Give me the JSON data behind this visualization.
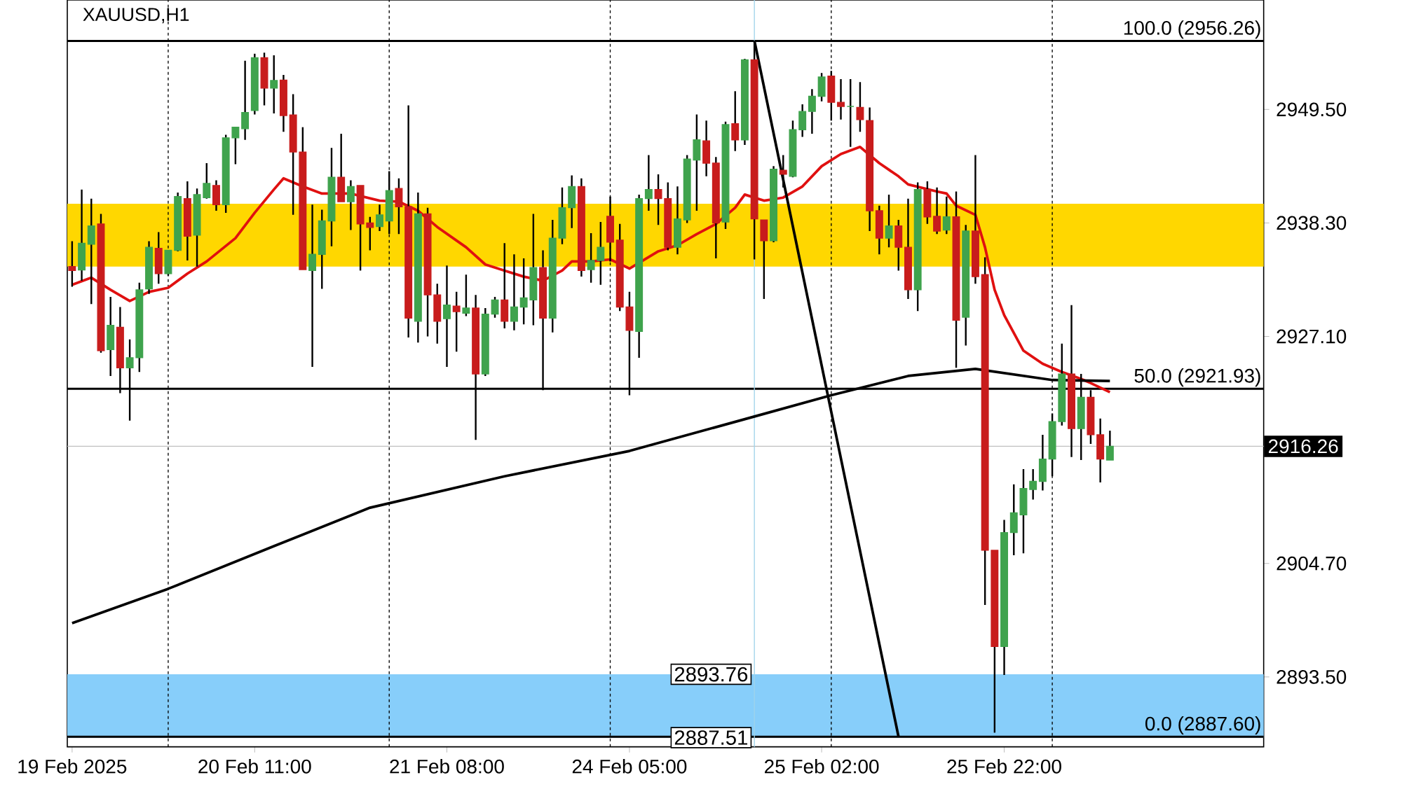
{
  "chart_data": {
    "type": "candlestick",
    "title": "XAUUSD,H1",
    "categories": [
      "19 Feb 2025",
      null,
      null,
      null,
      null,
      null,
      null,
      null,
      null,
      null,
      null,
      null,
      null,
      null,
      null,
      null,
      null,
      null,
      null,
      "20 Feb 11:00",
      null,
      null,
      null,
      null,
      null,
      null,
      null,
      null,
      null,
      null,
      null,
      null,
      null,
      null,
      null,
      null,
      null,
      null,
      null,
      "21 Feb 08:00",
      null,
      null,
      null,
      null,
      null,
      null,
      null,
      null,
      null,
      null,
      null,
      null,
      null,
      null,
      null,
      null,
      null,
      null,
      "24 Feb 05:00",
      null,
      null,
      null,
      null,
      null,
      null,
      null,
      null,
      null,
      null,
      null,
      null,
      null,
      null,
      null,
      null,
      null,
      null,
      null,
      "25 Feb 02:00",
      null,
      null,
      null,
      null,
      null,
      null,
      null,
      null,
      null,
      null,
      null,
      null,
      null,
      null,
      null,
      null,
      null,
      null,
      "25 Feb 22:00",
      null,
      null,
      null,
      null,
      null,
      null,
      null,
      null,
      null,
      null,
      null
    ],
    "ohlc": [
      [
        2934.0,
        2936.5,
        2932.0,
        2933.6
      ],
      [
        2933.65,
        2941.6,
        2932.6,
        2936.3
      ],
      [
        2936.2,
        2940.7,
        2930.3,
        2938.0
      ],
      [
        2938.2,
        2939.2,
        2925.5,
        2925.7
      ],
      [
        2925.8,
        2931.0,
        2923.2,
        2928.2
      ],
      [
        2928.0,
        2930.0,
        2921.5,
        2924.0
      ],
      [
        2924.0,
        2926.8,
        2918.8,
        2925.0
      ],
      [
        2925.0,
        2932.4,
        2923.6,
        2931.7
      ],
      [
        2931.8,
        2936.5,
        2931.3,
        2935.9
      ],
      [
        2935.8,
        2937.4,
        2932.3,
        2933.3
      ],
      [
        2933.3,
        2935.6,
        2933.1,
        2935.6
      ],
      [
        2935.6,
        2941.3,
        2935.5,
        2940.9
      ],
      [
        2940.7,
        2942.4,
        2934.6,
        2937.0
      ],
      [
        2937.1,
        2941.7,
        2934.0,
        2941.1
      ],
      [
        2940.8,
        2944.2,
        2940.7,
        2942.2
      ],
      [
        2942.0,
        2942.5,
        2939.5,
        2940.1
      ],
      [
        2940.1,
        2947.0,
        2939.3,
        2946.7
      ],
      [
        2946.7,
        2947.8,
        2944.1,
        2947.75
      ],
      [
        2947.6,
        2954.3,
        2946.5,
        2949.2
      ],
      [
        2949.4,
        2955.0,
        2949.0,
        2954.6
      ],
      [
        2954.6,
        2955.1,
        2949.9,
        2951.6
      ],
      [
        2951.6,
        2954.85,
        2949.1,
        2952.36
      ],
      [
        2952.4,
        2952.9,
        2947.3,
        2948.9
      ],
      [
        2948.95,
        2951.0,
        2939.1,
        2945.3
      ],
      [
        2945.3,
        2947.75,
        2933.7,
        2933.7
      ],
      [
        2933.6,
        2940.1,
        2924.1,
        2935.2
      ],
      [
        2935.2,
        2939.6,
        2931.8,
        2938.5
      ],
      [
        2938.5,
        2945.7,
        2936.0,
        2942.8
      ],
      [
        2942.8,
        2947.1,
        2940.4,
        2940.4
      ],
      [
        2940.4,
        2942.5,
        2937.6,
        2941.9
      ],
      [
        2942.0,
        2942.0,
        2933.6,
        2938.2
      ],
      [
        2938.3,
        2938.9,
        2935.6,
        2937.85
      ],
      [
        2937.95,
        2940.1,
        2937.5,
        2939.1
      ],
      [
        2938.5,
        2943.4,
        2937.2,
        2941.5
      ],
      [
        2941.7,
        2942.7,
        2937.2,
        2939.9
      ],
      [
        2939.9,
        2949.9,
        2927.0,
        2928.9
      ],
      [
        2928.6,
        2941.3,
        2926.5,
        2939.2
      ],
      [
        2939.2,
        2939.8,
        2927.1,
        2931.2
      ],
      [
        2931.2,
        2932.3,
        2926.4,
        2928.6
      ],
      [
        2928.85,
        2934.1,
        2924.1,
        2930.2
      ],
      [
        2930.1,
        2931.5,
        2925.6,
        2929.55
      ],
      [
        2929.4,
        2933.2,
        2929.1,
        2929.9
      ],
      [
        2929.9,
        2931.2,
        2916.9,
        2923.4
      ],
      [
        2923.4,
        2929.9,
        2923.2,
        2929.3
      ],
      [
        2929.3,
        2931.0,
        2928.95,
        2930.7
      ],
      [
        2930.7,
        2936.3,
        2927.9,
        2928.6
      ],
      [
        2928.6,
        2935.2,
        2927.7,
        2930.0
      ],
      [
        2930.0,
        2934.8,
        2928.3,
        2930.9
      ],
      [
        2930.7,
        2939.2,
        2928.2,
        2933.9
      ],
      [
        2933.9,
        2935.6,
        2921.8,
        2928.9
      ],
      [
        2928.9,
        2938.6,
        2927.5,
        2936.8
      ],
      [
        2936.8,
        2941.8,
        2936.2,
        2939.8
      ],
      [
        2939.8,
        2943.0,
        2937.8,
        2941.9
      ],
      [
        2941.9,
        2942.7,
        2933.0,
        2933.6
      ],
      [
        2933.7,
        2937.3,
        2932.4,
        2934.6
      ],
      [
        2934.6,
        2938.4,
        2932.2,
        2935.9
      ],
      [
        2938.95,
        2940.9,
        2934.5,
        2936.4
      ],
      [
        2936.6,
        2938.2,
        2929.6,
        2930.0
      ],
      [
        2930.0,
        2931.5,
        2921.3,
        2927.7
      ],
      [
        2927.6,
        2941.1,
        2925.0,
        2940.7
      ],
      [
        2940.7,
        2945.0,
        2939.5,
        2941.6
      ],
      [
        2941.6,
        2943.1,
        2938.1,
        2940.7
      ],
      [
        2940.7,
        2942.3,
        2935.6,
        2935.9
      ],
      [
        2935.9,
        2941.9,
        2935.2,
        2938.7
      ],
      [
        2938.6,
        2945.0,
        2938.3,
        2944.6
      ],
      [
        2944.5,
        2949.0,
        2939.5,
        2946.5
      ],
      [
        2946.4,
        2948.4,
        2942.9,
        2944.2
      ],
      [
        2944.2,
        2944.8,
        2934.8,
        2938.3
      ],
      [
        2938.4,
        2948.3,
        2937.7,
        2948.0
      ],
      [
        2948.1,
        2951.3,
        2945.4,
        2946.5
      ],
      [
        2946.5,
        2954.5,
        2946.0,
        2954.4
      ],
      [
        2954.4,
        2956.26,
        2934.7,
        2938.7
      ],
      [
        2938.6,
        2938.6,
        2930.8,
        2936.55
      ],
      [
        2936.55,
        2943.9,
        2936.4,
        2943.6
      ],
      [
        2943.5,
        2945.0,
        2941.8,
        2943.1
      ],
      [
        2942.9,
        2948.4,
        2942.8,
        2947.5
      ],
      [
        2947.5,
        2950.0,
        2946.8,
        2949.3
      ],
      [
        2949.3,
        2951.5,
        2947.1,
        2950.8
      ],
      [
        2950.8,
        2953.1,
        2950.3,
        2952.7
      ],
      [
        2952.8,
        2953.3,
        2948.4,
        2950.2
      ],
      [
        2950.2,
        2952.5,
        2948.5,
        2949.8
      ],
      [
        2949.8,
        2952.5,
        2945.8,
        2949.8
      ],
      [
        2949.7,
        2952.2,
        2947.3,
        2948.5
      ],
      [
        2948.4,
        2949.7,
        2937.5,
        2939.5
      ],
      [
        2939.5,
        2940.0,
        2935.2,
        2936.8
      ],
      [
        2936.8,
        2941.1,
        2935.9,
        2938.0
      ],
      [
        2938.0,
        2938.6,
        2933.6,
        2935.9
      ],
      [
        2935.9,
        2940.7,
        2930.8,
        2931.7
      ],
      [
        2931.7,
        2942.3,
        2929.6,
        2941.6
      ],
      [
        2941.6,
        2942.4,
        2938.2,
        2938.9
      ],
      [
        2938.95,
        2941.8,
        2937.2,
        2937.5
      ],
      [
        2937.6,
        2940.9,
        2937.2,
        2938.9
      ],
      [
        2938.9,
        2941.4,
        2924.0,
        2928.7
      ],
      [
        2929.0,
        2938.1,
        2926.2,
        2937.5
      ],
      [
        2937.5,
        2945.0,
        2932.3,
        2933.0
      ],
      [
        2933.2,
        2934.9,
        2900.6,
        2906.0
      ],
      [
        2906.0,
        2906.0,
        2888.0,
        2896.5
      ],
      [
        2896.5,
        2909.0,
        2893.7,
        2907.75
      ],
      [
        2907.75,
        2912.5,
        2905.5,
        2909.7
      ],
      [
        2909.5,
        2914.0,
        2905.7,
        2912.1
      ],
      [
        2912.0,
        2914.0,
        2911.0,
        2912.8
      ],
      [
        2912.8,
        2917.4,
        2911.9,
        2915.0
      ],
      [
        2915.0,
        2919.5,
        2913.3,
        2918.7
      ],
      [
        2918.7,
        2926.4,
        2918.3,
        2923.4
      ],
      [
        2923.4,
        2930.2,
        2915.2,
        2918.0
      ],
      [
        2918.0,
        2923.4,
        2914.9,
        2921.1
      ],
      [
        2921.1,
        2921.8,
        2916.5,
        2917.4
      ],
      [
        2917.4,
        2919.0,
        2912.7,
        2915.0
      ],
      [
        2914.9,
        2917.8,
        2914.9,
        2916.26
      ]
    ],
    "colors": [
      "#c81c1c",
      "#3fa34d",
      "#3fa34d",
      "#c81c1c",
      "#3fa34d",
      "#c81c1c",
      "#3fa34d",
      "#3fa34d",
      "#3fa34d",
      "#c81c1c",
      "#3fa34d",
      "#3fa34d",
      "#c81c1c",
      "#3fa34d",
      "#3fa34d",
      "#c81c1c",
      "#3fa34d",
      "#3fa34d",
      "#3fa34d",
      "#3fa34d",
      "#c81c1c",
      "#3fa34d",
      "#c81c1c",
      "#c81c1c",
      "#c81c1c",
      "#3fa34d",
      "#3fa34d",
      "#3fa34d",
      "#c81c1c",
      "#3fa34d",
      "#c81c1c",
      "#c81c1c",
      "#3fa34d",
      "#3fa34d",
      "#c81c1c",
      "#c81c1c",
      "#3fa34d",
      "#c81c1c",
      "#c81c1c",
      "#3fa34d",
      "#c81c1c",
      "#3fa34d",
      "#c81c1c",
      "#3fa34d",
      "#3fa34d",
      "#c81c1c",
      "#3fa34d",
      "#3fa34d",
      "#3fa34d",
      "#c81c1c",
      "#3fa34d",
      "#3fa34d",
      "#3fa34d",
      "#c81c1c",
      "#3fa34d",
      "#3fa34d",
      "#c81c1c",
      "#c81c1c",
      "#c81c1c",
      "#3fa34d",
      "#3fa34d",
      "#c81c1c",
      "#c81c1c",
      "#3fa34d",
      "#3fa34d",
      "#3fa34d",
      "#c81c1c",
      "#c81c1c",
      "#3fa34d",
      "#c81c1c",
      "#3fa34d",
      "#c81c1c",
      "#c81c1c",
      "#3fa34d",
      "#c81c1c",
      "#3fa34d",
      "#3fa34d",
      "#3fa34d",
      "#3fa34d",
      "#c81c1c",
      "#c81c1c",
      "#3fa34d",
      "#c81c1c",
      "#c81c1c",
      "#c81c1c",
      "#3fa34d",
      "#c81c1c",
      "#c81c1c",
      "#3fa34d",
      "#c81c1c",
      "#c81c1c",
      "#3fa34d",
      "#c81c1c",
      "#3fa34d",
      "#c81c1c",
      "#c81c1c",
      "#c81c1c",
      "#3fa34d",
      "#3fa34d",
      "#3fa34d",
      "#3fa34d",
      "#3fa34d",
      "#3fa34d",
      "#3fa34d",
      "#c81c1c",
      "#3fa34d",
      "#c81c1c",
      "#c81c1c",
      "#3fa34d"
    ],
    "series": [
      {
        "type": "line",
        "color": "#e01010",
        "values": [
          2932.2,
          null,
          2932.9,
          null,
          2931.7,
          null,
          2930.6,
          null,
          2931.5,
          null,
          2931.9,
          null,
          2933.3,
          null,
          2934.5,
          null,
          null,
          2936.8,
          null,
          2939.3,
          null,
          2941.6,
          2942.7,
          null,
          2941.9,
          null,
          2941.2,
          null,
          null,
          2941.2,
          null,
          null,
          2940.5,
          null,
          2940.4,
          null,
          2939.5,
          null,
          2937.9,
          null,
          null,
          2935.9,
          null,
          2934.2,
          null,
          2933.6,
          null,
          2933.0,
          null,
          2932.6,
          null,
          2933.6,
          2934.5,
          null,
          2934.5,
          null,
          2934.7,
          null,
          2933.8,
          null,
          null,
          2935.5,
          null,
          2936.1,
          null,
          2937.2,
          null,
          2938.2,
          null,
          2939.8,
          2941.1,
          null,
          2940.5,
          null,
          2940.8,
          null,
          2941.9,
          null,
          2943.9,
          null,
          2945.1,
          null,
          2945.8,
          null,
          2944.2,
          null,
          2942.9,
          2942.1,
          null,
          null,
          2941.4,
          2941.2,
          2940.0,
          null,
          2939.1,
          2935.9,
          2931.7,
          2929.2,
          null,
          2925.7,
          null,
          2924.4,
          null,
          2923.6,
          null,
          2922.9,
          2922.5,
          null,
          2921.6
        ]
      },
      {
        "type": "line",
        "color": "#000000",
        "values": [
          2898.8,
          null,
          null,
          null,
          null,
          null,
          null,
          null,
          null,
          null,
          2902.2,
          null,
          null,
          null,
          null,
          null,
          null,
          null,
          null,
          null,
          null,
          2906.4,
          null,
          null,
          null,
          null,
          null,
          null,
          null,
          null,
          null,
          2910.2,
          null,
          null,
          null,
          null,
          null,
          null,
          null,
          null,
          null,
          null,
          null,
          null,
          null,
          2913.3,
          null,
          null,
          null,
          null,
          null,
          null,
          null,
          null,
          null,
          null,
          null,
          null,
          2915.8,
          null,
          null,
          null,
          null,
          null,
          null,
          null,
          null,
          null,
          null,
          null,
          null,
          2919.2,
          null,
          null,
          null,
          null,
          null,
          null,
          null,
          2921.3,
          null,
          null,
          null,
          null,
          null,
          null,
          null,
          2923.2,
          null,
          null,
          null,
          null,
          null,
          null,
          2923.9,
          null,
          null,
          null,
          null,
          null,
          null,
          null,
          2922.8,
          null,
          null,
          null,
          null,
          null,
          2922.7
        ]
      },
      {
        "type": "line",
        "color": "#000000",
        "values": [
          null,
          null,
          null,
          null,
          null,
          null,
          null,
          null,
          null,
          null,
          null,
          null,
          null,
          null,
          null,
          null,
          null,
          null,
          null,
          null,
          null,
          null,
          null,
          null,
          null,
          null,
          null,
          null,
          null,
          null,
          null,
          null,
          null,
          null,
          null,
          null,
          null,
          null,
          null,
          null,
          null,
          null,
          null,
          null,
          null,
          null,
          null,
          null,
          null,
          null,
          null,
          null,
          null,
          null,
          null,
          null,
          null,
          null,
          null,
          null,
          null,
          null,
          null,
          null,
          null,
          null,
          null,
          null,
          null,
          null,
          null,
          2956.3,
          null,
          null,
          null,
          null,
          null,
          null,
          null,
          null,
          null,
          null,
          null,
          null,
          null,
          null,
          2887.6,
          null,
          null,
          null,
          null,
          null,
          null,
          null,
          null,
          null,
          null,
          null,
          null,
          null,
          null,
          null,
          null,
          null,
          null,
          null,
          null,
          null,
          null
        ]
      }
    ],
    "ylim": [
      2886.6,
      2960.3
    ],
    "yticks": [
      {
        "value": 2893.5,
        "label": "2893.50"
      },
      {
        "value": 2904.7,
        "label": "2904.70"
      },
      {
        "value": 2927.1,
        "label": "2927.10"
      },
      {
        "value": 2938.3,
        "label": "2938.30"
      },
      {
        "value": 2949.5,
        "label": "2949.50"
      }
    ],
    "bands": [
      {
        "axis": "y",
        "from": 2934.0,
        "to": 2940.2,
        "color": "#ffd700"
      },
      {
        "axis": "y",
        "from": 2887.51,
        "to": 2893.76,
        "color": "#87cefa"
      }
    ],
    "ref_lines": [
      {
        "axis": "y",
        "value": 2956.26,
        "label": "100.0 (2956.26)",
        "color": "#000000",
        "line_style": "solid"
      },
      {
        "axis": "y",
        "value": 2921.93,
        "label": "50.0 (2921.93)",
        "color": "#000000",
        "line_style": "solid"
      },
      {
        "axis": "y",
        "value": 2887.6,
        "label": "0.0 (2887.60)",
        "color": "#000000",
        "line_style": "solid"
      },
      {
        "axis": "y",
        "value": 2916.26,
        "label": "2916.26",
        "color": "#c0c0c0"
      }
    ],
    "grid": "x",
    "annotations": [
      {
        "text": "2893.76",
        "y": 2893.76
      },
      {
        "text": "2887.51",
        "y": 2887.51
      }
    ]
  }
}
